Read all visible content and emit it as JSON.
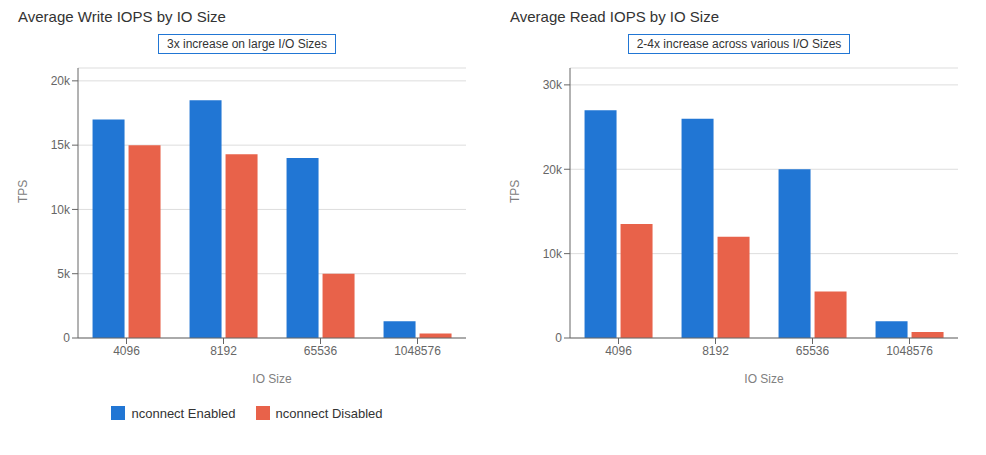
{
  "chart_data": [
    {
      "type": "bar",
      "title": "Average Write IOPS by IO Size",
      "categories": [
        "4096",
        "8192",
        "65536",
        "1048576"
      ],
      "series": [
        {
          "name": "nconnect Enabled",
          "color": "#2176d4",
          "values": [
            17000,
            18500,
            14000,
            1300
          ]
        },
        {
          "name": "nconnect Disabled",
          "color": "#e8624a",
          "values": [
            15000,
            14300,
            5000,
            350
          ]
        }
      ],
      "xlabel": "IO Size",
      "ylabel": "TPS",
      "ylim": [
        0,
        21000
      ],
      "yticks": [
        0,
        {
          "value": 5000,
          "label": "5k"
        },
        {
          "value": 10000,
          "label": "10k"
        },
        {
          "value": 15000,
          "label": "15k"
        },
        {
          "value": 20000,
          "label": "20k"
        }
      ],
      "annotation": "3x increase on large I/O Sizes",
      "grid": true,
      "legend": "bottom"
    },
    {
      "type": "bar",
      "title": "Average Read IOPS by IO Size",
      "categories": [
        "4096",
        "8192",
        "65536",
        "1048576"
      ],
      "series": [
        {
          "name": "nconnect Enabled",
          "color": "#2176d4",
          "values": [
            27000,
            26000,
            20000,
            2000
          ]
        },
        {
          "name": "nconnect Disabled",
          "color": "#e8624a",
          "values": [
            13500,
            12000,
            5500,
            700
          ]
        }
      ],
      "xlabel": "IO Size",
      "ylabel": "TPS",
      "ylim": [
        0,
        32000
      ],
      "yticks": [
        0,
        {
          "value": 10000,
          "label": "10k"
        },
        {
          "value": 20000,
          "label": "20k"
        },
        {
          "value": 30000,
          "label": "30k"
        }
      ],
      "annotation": "2-4x increase across various I/O Sizes",
      "grid": true
    }
  ]
}
